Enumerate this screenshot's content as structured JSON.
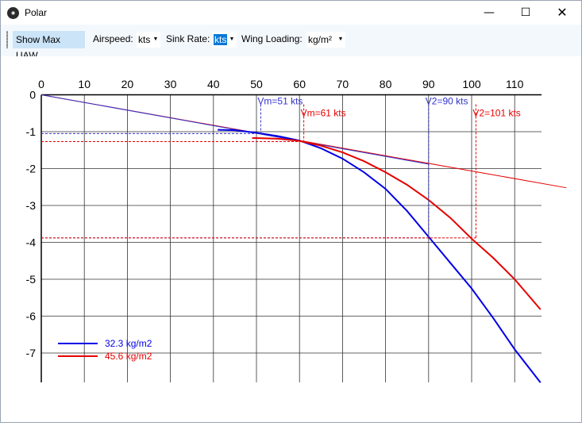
{
  "window": {
    "title": "Polar",
    "icon": "app-logo-icon"
  },
  "toolbar": {
    "show_max_uaw": "Show Max UAW",
    "airspeed_label": "Airspeed:",
    "airspeed_unit": "kts",
    "sink_rate_label": "Sink Rate:",
    "sink_rate_unit": "kts",
    "wing_loading_label": "Wing Loading:",
    "wing_loading_unit": "kg/m²"
  },
  "chart_data": {
    "type": "line",
    "xlim": [
      0,
      115
    ],
    "ylim": [
      -7.8,
      0
    ],
    "xticks": [
      "0",
      "10",
      "20",
      "30",
      "40",
      "50",
      "60",
      "70",
      "80",
      "90",
      "100",
      "110"
    ],
    "yticks": [
      "0",
      "-1",
      "-2",
      "-3",
      "-4",
      "-5",
      "-6",
      "-7"
    ],
    "grid": true,
    "legend": "bottom-left",
    "series": [
      {
        "name": "32.3 kg/m2",
        "color": "#0000e6",
        "x": [
          41,
          45,
          50,
          55,
          60,
          65,
          70,
          75,
          80,
          85,
          90,
          95,
          100,
          105,
          110,
          116
        ],
        "y": [
          -0.95,
          -0.96,
          -1.03,
          -1.12,
          -1.24,
          -1.45,
          -1.73,
          -2.1,
          -2.55,
          -3.15,
          -3.85,
          -4.55,
          -5.25,
          -6.05,
          -6.9,
          -7.8
        ],
        "vm": {
          "x": 51,
          "y": -1.05,
          "label": "Vm=51 kts"
        },
        "v2": {
          "x": 90,
          "y": -3.88,
          "label": "V2=90 kts"
        }
      },
      {
        "name": "45.6 kg/m2",
        "color": "#e60000",
        "x": [
          49,
          55,
          60,
          65,
          70,
          75,
          80,
          85,
          90,
          95,
          100,
          105,
          110,
          116
        ],
        "y": [
          -1.17,
          -1.19,
          -1.25,
          -1.38,
          -1.56,
          -1.8,
          -2.1,
          -2.44,
          -2.85,
          -3.33,
          -3.9,
          -4.42,
          -5.0,
          -5.82
        ]
      }
    ],
    "annotations": {
      "vm_red": {
        "x": 61,
        "y": -1.27,
        "label": "Vm=61 kts"
      },
      "v2_red": {
        "x": 101,
        "y": -3.88,
        "label": "V2=101 kts"
      }
    },
    "tangent_blue": {
      "x": [
        0,
        90
      ],
      "y": [
        0,
        -1.88
      ]
    },
    "tangent_red": {
      "x": [
        0,
        122
      ],
      "y": [
        0,
        -2.52
      ]
    }
  }
}
